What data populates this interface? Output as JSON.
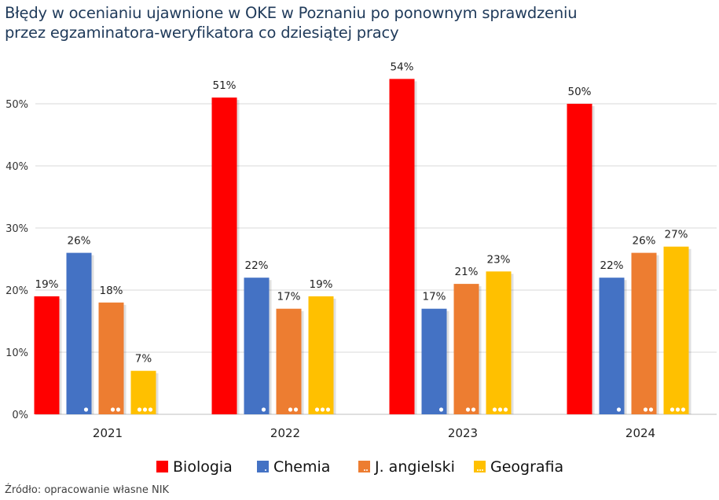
{
  "chart_data": {
    "type": "bar",
    "title": "Błędy w ocenianiu ujawnione w OKE w Poznaniu po ponownym sprawdzeniu przez egzaminatora-weryfikatora co dziesiątej pracy",
    "title_lines": [
      "Błędy w ocenianiu ujawnione w OKE w Poznaniu po ponownym sprawdzeniu",
      "przez egzaminatora-weryfikatora co dziesiątej pracy"
    ],
    "categories": [
      "2021",
      "2022",
      "2023",
      "2024"
    ],
    "series": [
      {
        "name": "Biologia",
        "color": "#ff0000",
        "dots": 0,
        "values": [
          19,
          51,
          54,
          50
        ]
      },
      {
        "name": "Chemia",
        "color": "#4472c4",
        "dots": 1,
        "values": [
          26,
          22,
          17,
          22
        ]
      },
      {
        "name": "J. angielski",
        "color": "#ed7d31",
        "dots": 2,
        "values": [
          18,
          17,
          21,
          26
        ]
      },
      {
        "name": "Geografia",
        "color": "#ffc000",
        "dots": 3,
        "values": [
          7,
          19,
          23,
          27
        ]
      }
    ],
    "yticks": [
      "0%",
      "10%",
      "20%",
      "30%",
      "40%",
      "50%"
    ],
    "ylim": [
      0,
      50
    ],
    "xlabel": "",
    "ylabel": "",
    "grid": true,
    "legend": "bottom",
    "data_labels": true
  },
  "source": "Źródło: opracowanie własne NIK"
}
